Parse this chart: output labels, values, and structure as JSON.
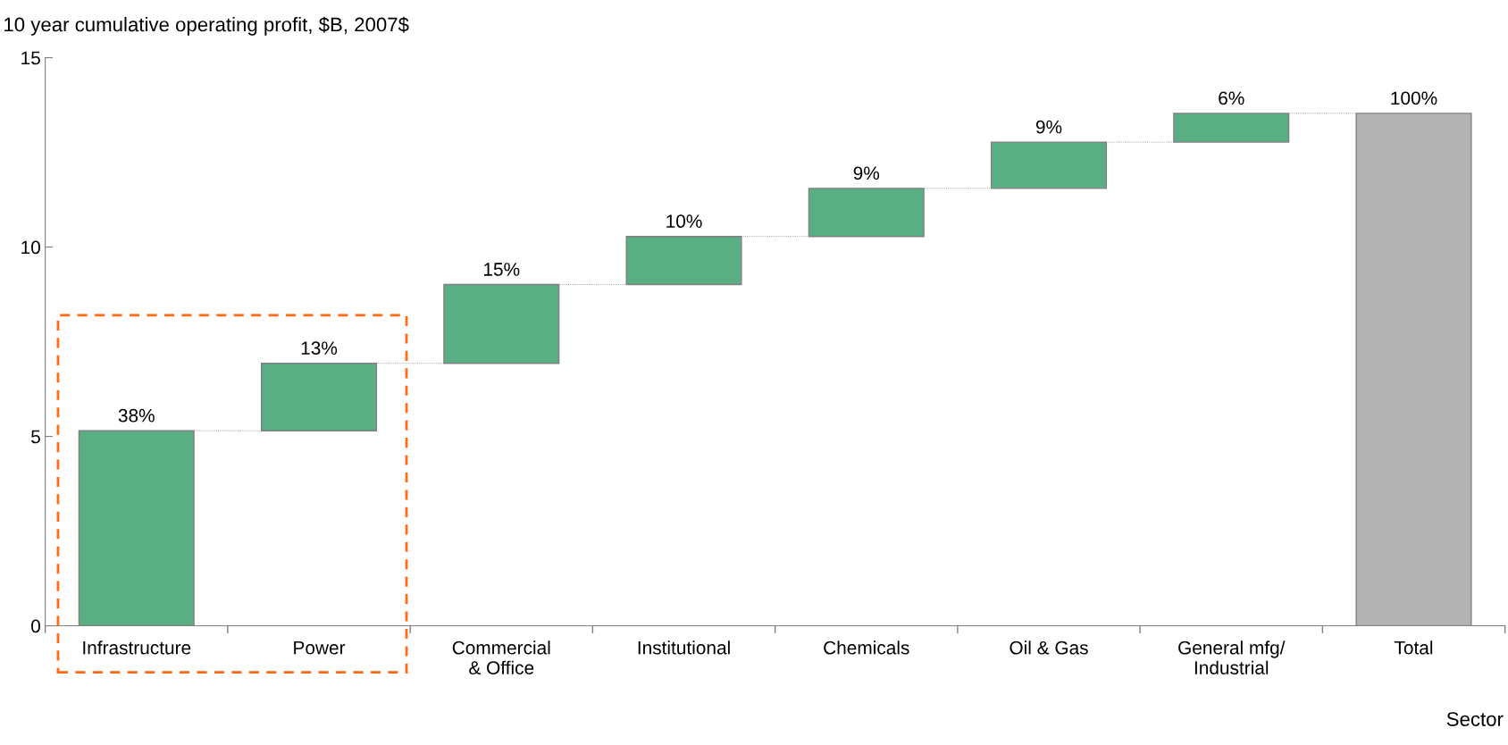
{
  "chart_data": {
    "type": "bar",
    "title": "10 year cumulative operating profit, $B, 2007$",
    "xlabel": "Sector",
    "categories": [
      "Infrastructure",
      "Power",
      "Commercial\n& Office",
      "Institutional",
      "Chemicals",
      "Oil & Gas",
      "General mfg/\nIndustrial",
      "Total"
    ],
    "values": [
      5.15,
      1.78,
      2.08,
      1.27,
      1.27,
      1.22,
      0.76,
      13.53
    ],
    "base": [
      0,
      5.15,
      6.93,
      9.01,
      10.28,
      11.55,
      12.77,
      0
    ],
    "colors": [
      "#5aae84",
      "#5aae84",
      "#5aae84",
      "#5aae84",
      "#5aae84",
      "#5aae84",
      "#5aae84",
      "#b3b3b3"
    ],
    "annotations": [
      {
        "text": "38%",
        "x": "Infrastructure",
        "y": 5.15
      },
      {
        "text": "13%",
        "x": "Power",
        "y": 6.93
      },
      {
        "text": "15%",
        "x": "Commercial\n& Office",
        "y": 9.01
      },
      {
        "text": "10%",
        "x": "Institutional",
        "y": 10.28
      },
      {
        "text": "9%",
        "x": "Chemicals",
        "y": 11.55
      },
      {
        "text": "9%",
        "x": "Oil & Gas",
        "y": 12.77
      },
      {
        "text": "6%",
        "x": "General mfg/\nIndustrial",
        "y": 13.53
      },
      {
        "text": "100%",
        "x": "Total",
        "y": 13.53
      }
    ],
    "ylim": [
      0,
      15
    ],
    "yticks": [
      0,
      5,
      10,
      15
    ],
    "grid": false,
    "legend": false
  }
}
